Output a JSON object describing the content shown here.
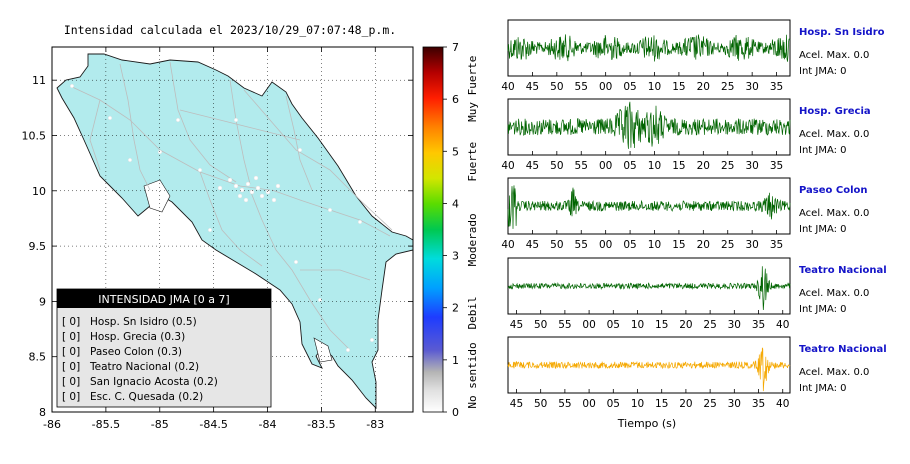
{
  "map": {
    "title": "Intensidad calculada el 2023/10/29_07:07:48_p.m.",
    "x_ticks": [
      "-86",
      "-85.5",
      "-85",
      "-84.5",
      "-84",
      "-83.5",
      "-83"
    ],
    "y_ticks": [
      "11",
      "10.5",
      "10",
      "9.5",
      "9",
      "8.5",
      "8"
    ],
    "land_color": "#b2ebed",
    "road_color": "#bdbdbd"
  },
  "legend": {
    "title": "INTENSIDAD JMA [0 a 7]",
    "items": [
      {
        "level": "[ 0]",
        "name": "Hosp. Sn Isidro (0.5)"
      },
      {
        "level": "[ 0]",
        "name": "Hosp. Grecia (0.3)"
      },
      {
        "level": "[ 0]",
        "name": "Paseo Colon (0.3)"
      },
      {
        "level": "[ 0]",
        "name": "Teatro Nacional (0.2)"
      },
      {
        "level": "[ 0]",
        "name": "San Ignacio Acosta (0.2)"
      },
      {
        "level": "[ 0]",
        "name": "Esc. C. Quesada (0.2)"
      }
    ]
  },
  "colorbar": {
    "ticks": [
      "7",
      "6",
      "5",
      "4",
      "3",
      "2",
      "1",
      "0"
    ],
    "labels": [
      "Muy Fuerte",
      "Fuerte",
      "Moderado",
      "Debil",
      "No sentido"
    ]
  },
  "waveforms": {
    "xlabel": "Tiempo (s)",
    "panels": [
      {
        "station": "Hosp. Sn Isidro",
        "acel": "Acel. Max. 0.0",
        "int": "Int JMA: 0",
        "color": "#006400",
        "ticks": [
          "40",
          "45",
          "50",
          "55",
          "00",
          "05",
          "10",
          "15",
          "20",
          "25",
          "30",
          "35"
        ]
      },
      {
        "station": "Hosp. Grecia",
        "acel": "Acel. Max. 0.0",
        "int": "Int JMA: 0",
        "color": "#006400",
        "ticks": [
          "40",
          "45",
          "50",
          "55",
          "00",
          "05",
          "10",
          "15",
          "20",
          "25",
          "30",
          "35"
        ]
      },
      {
        "station": "Paseo Colon",
        "acel": "Acel. Max. 0.0",
        "int": "Int JMA: 0",
        "color": "#006400",
        "ticks": [
          "40",
          "45",
          "50",
          "55",
          "00",
          "05",
          "10",
          "15",
          "20",
          "25",
          "30",
          "35"
        ]
      },
      {
        "station": "Teatro Nacional",
        "acel": "Acel. Max. 0.0",
        "int": "Int JMA: 0",
        "color": "#006400",
        "ticks": [
          "45",
          "50",
          "55",
          "00",
          "05",
          "10",
          "15",
          "20",
          "25",
          "30",
          "35",
          "40"
        ]
      },
      {
        "station": "Teatro Nacional",
        "acel": "Acel. Max. 0.0",
        "int": "Int JMA: 0",
        "color": "#f5a800",
        "ticks": [
          "45",
          "50",
          "55",
          "00",
          "05",
          "10",
          "15",
          "20",
          "25",
          "30",
          "35",
          "40"
        ]
      }
    ]
  },
  "chart_data": [
    {
      "type": "scatter",
      "title": "Intensidad calculada el 2023/10/29_07:07:48_p.m.",
      "xlim": [
        -86,
        -82.65
      ],
      "ylim": [
        8,
        11.3
      ],
      "x_ticks": [
        -86,
        -85.5,
        -85,
        -84.5,
        -84,
        -83.5,
        -83
      ],
      "y_ticks": [
        8,
        8.5,
        9,
        9.5,
        10,
        10.5,
        11
      ],
      "colorbar_range": [
        0,
        7
      ]
    },
    {
      "type": "line",
      "xlabel": "Tiempo (s)",
      "series": [
        {
          "name": "Hosp. Sn Isidro",
          "max_accel": 0.0,
          "jma_intensity": 0
        },
        {
          "name": "Hosp. Grecia",
          "max_accel": 0.0,
          "jma_intensity": 0
        },
        {
          "name": "Paseo Colon",
          "max_accel": 0.0,
          "jma_intensity": 0
        },
        {
          "name": "Teatro Nacional",
          "max_accel": 0.0,
          "jma_intensity": 0
        },
        {
          "name": "Teatro Nacional",
          "max_accel": 0.0,
          "jma_intensity": 0
        }
      ]
    }
  ]
}
